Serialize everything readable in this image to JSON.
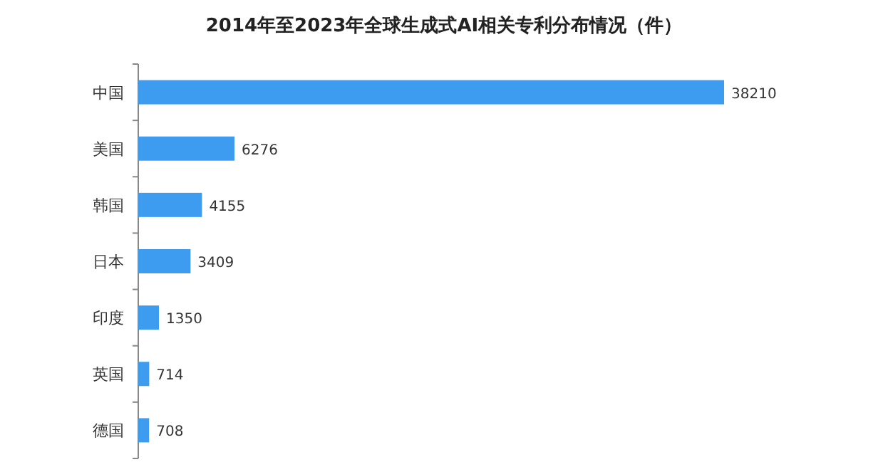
{
  "chart_data": {
    "type": "bar",
    "orientation": "horizontal",
    "title": "2014年至2023年全球生成式AI相关专利分布情况（件）",
    "categories": [
      "中国",
      "美国",
      "韩国",
      "日本",
      "印度",
      "英国",
      "德国"
    ],
    "values": [
      38210,
      6276,
      4155,
      3409,
      1350,
      714,
      708
    ],
    "color": "#3d9cf0",
    "data_labels": true
  }
}
